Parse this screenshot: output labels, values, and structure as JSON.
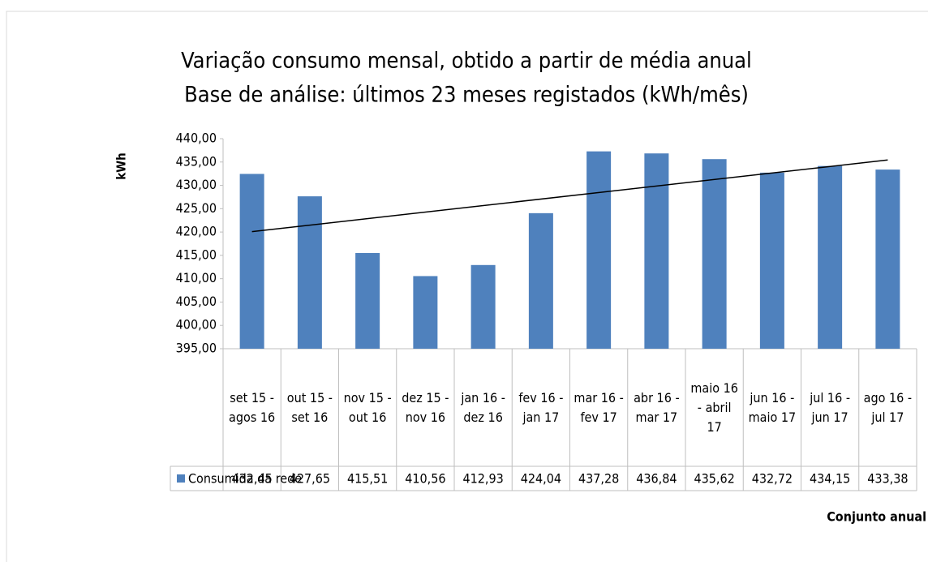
{
  "chart_data": {
    "type": "bar",
    "title": "Variação consumo mensal, obtido a partir de média anual",
    "subtitle": "Base de análise: últimos 23 meses registados (kWh/mês)",
    "y_axis_label": "kWh",
    "x_axis_label": "Conjunto anual",
    "categories": [
      "set 15 - agos 16",
      "out 15 - set 16",
      "nov 15 - out 16",
      "dez 15 - nov 16",
      "jan 16 - dez 16",
      "fev 16 - jan 17",
      "mar 16 - fev 17",
      "abr 16 - mar 17",
      "maio 16 - abril 17",
      "jun 16 - maio 17",
      "jul 16 - jun 17",
      "ago 16 - jul 17"
    ],
    "series": [
      {
        "name": "Consumida da rede",
        "color": "#4f81bd",
        "values": [
          432.45,
          427.65,
          415.51,
          410.56,
          412.93,
          424.04,
          437.28,
          436.84,
          435.62,
          432.72,
          434.15,
          433.38
        ],
        "value_labels": [
          "432,45",
          "427,65",
          "415,51",
          "410,56",
          "412,93",
          "424,04",
          "437,28",
          "436,84",
          "435,62",
          "432,72",
          "434,15",
          "433,38"
        ]
      }
    ],
    "trendline": "linear",
    "ylim": [
      395,
      440
    ],
    "yticks": [
      {
        "value": 395,
        "label": "395,00"
      },
      {
        "value": 400,
        "label": "400,00"
      },
      {
        "value": 405,
        "label": "405,00"
      },
      {
        "value": 410,
        "label": "410,00"
      },
      {
        "value": 415,
        "label": "415,00"
      },
      {
        "value": 420,
        "label": "420,00"
      },
      {
        "value": 425,
        "label": "425,00"
      },
      {
        "value": 430,
        "label": "430,00"
      },
      {
        "value": 435,
        "label": "435,00"
      },
      {
        "value": 440,
        "label": "440,00"
      }
    ],
    "grid": false
  }
}
